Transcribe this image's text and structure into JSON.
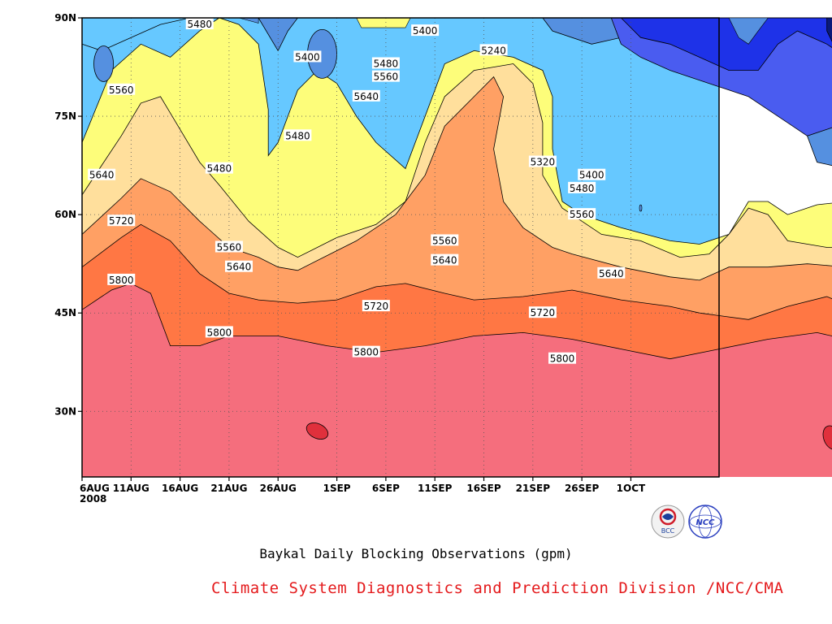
{
  "title": "Baykal Daily Blocking Observations (gpm)",
  "credit": "Climate System Diagnostics and Prediction Division /NCC/CMA",
  "logos": [
    {
      "name": "bcc-logo",
      "text": "BCC"
    },
    {
      "name": "ncc-logo",
      "text": "NCC"
    }
  ],
  "chart_data": {
    "type": "heatmap",
    "title": "Baykal Daily Blocking Observations (gpm)",
    "xlabel": "",
    "ylabel": "",
    "x_ticks": [
      "6AUG",
      "11AUG",
      "16AUG",
      "21AUG",
      "26AUG",
      "1SEP",
      "6SEP",
      "11SEP",
      "16SEP",
      "21SEP",
      "26SEP",
      "1OCT"
    ],
    "x_year": "2008",
    "y_ticks": [
      "30N",
      "45N",
      "60N",
      "75N",
      "90N"
    ],
    "y_values": [
      30,
      45,
      60,
      75,
      90
    ],
    "ylim": [
      20,
      90
    ],
    "grid": true,
    "contour_levels": [
      5240,
      5320,
      5400,
      5480,
      5560,
      5640,
      5720,
      5800,
      5880
    ],
    "level_colors": {
      "below_5240": "#0a1a7a",
      "5240": "#1e32e8",
      "5320": "#4a5cf0",
      "5400": "#5590e0",
      "5480": "#66c8ff",
      "5560": "#fdfd7a",
      "5640": "#ffdf9c",
      "5720": "#ffa064",
      "5800": "#ff7744",
      "above_5800": "#f56e7d",
      "above_5880": "#e0303c"
    },
    "contour_labels": [
      {
        "value": "5480",
        "date": "18AUG",
        "lat": 89
      },
      {
        "value": "5400",
        "date": "29AUG",
        "lat": 84
      },
      {
        "value": "5400",
        "date": "10SEP",
        "lat": 88
      },
      {
        "value": "5240",
        "date": "17SEP",
        "lat": 85
      },
      {
        "value": "5480",
        "date": "6SEP",
        "lat": 83
      },
      {
        "value": "5560",
        "date": "6SEP",
        "lat": 81
      },
      {
        "value": "5640",
        "date": "4SEP",
        "lat": 78
      },
      {
        "value": "5560",
        "date": "10AUG",
        "lat": 79
      },
      {
        "value": "5480",
        "date": "28AUG",
        "lat": 72
      },
      {
        "value": "5480",
        "date": "20AUG",
        "lat": 67
      },
      {
        "value": "5320",
        "date": "22SEP",
        "lat": 68
      },
      {
        "value": "5400",
        "date": "27SEP",
        "lat": 66
      },
      {
        "value": "5480",
        "date": "26SEP",
        "lat": 64
      },
      {
        "value": "5640",
        "date": "8AUG",
        "lat": 66
      },
      {
        "value": "5560",
        "date": "26SEP",
        "lat": 60
      },
      {
        "value": "5720",
        "date": "10AUG",
        "lat": 59
      },
      {
        "value": "5560",
        "date": "21AUG",
        "lat": 55
      },
      {
        "value": "5560",
        "date": "12SEP",
        "lat": 56
      },
      {
        "value": "5640",
        "date": "12SEP",
        "lat": 53
      },
      {
        "value": "5640",
        "date": "22AUG",
        "lat": 52
      },
      {
        "value": "5640",
        "date": "29SEP",
        "lat": 51
      },
      {
        "value": "5800",
        "date": "10AUG",
        "lat": 50
      },
      {
        "value": "5720",
        "date": "5SEP",
        "lat": 46
      },
      {
        "value": "5720",
        "date": "22SEP",
        "lat": 45
      },
      {
        "value": "5800",
        "date": "20AUG",
        "lat": 42
      },
      {
        "value": "5800",
        "date": "4SEP",
        "lat": 39
      },
      {
        "value": "5800",
        "date": "24SEP",
        "lat": 38
      }
    ],
    "bands": [
      {
        "level": "above_5800",
        "boundary": [
          [
            0,
            45.5
          ],
          [
            3,
            48.5
          ],
          [
            5,
            49.5
          ],
          [
            7,
            48
          ],
          [
            8,
            44
          ],
          [
            9,
            40
          ],
          [
            12,
            40
          ],
          [
            15,
            41.5
          ],
          [
            20,
            41.5
          ],
          [
            25,
            40
          ],
          [
            30,
            39
          ],
          [
            35,
            40
          ],
          [
            40,
            41.5
          ],
          [
            45,
            42
          ],
          [
            50,
            41
          ],
          [
            55,
            39.5
          ],
          [
            60,
            38
          ],
          [
            65,
            39.5
          ],
          [
            70,
            41
          ],
          [
            75,
            42
          ],
          [
            78,
            41
          ],
          [
            80,
            39
          ]
        ]
      },
      {
        "level": "5800",
        "boundary": [
          [
            0,
            52
          ],
          [
            4,
            56.5
          ],
          [
            6,
            58.5
          ],
          [
            9,
            56
          ],
          [
            12,
            51
          ],
          [
            15,
            48
          ],
          [
            18,
            47
          ],
          [
            22,
            46.5
          ],
          [
            26,
            47
          ],
          [
            30,
            49
          ],
          [
            33,
            49.5
          ],
          [
            37,
            48
          ],
          [
            40,
            47
          ],
          [
            45,
            47.5
          ],
          [
            50,
            48.5
          ],
          [
            55,
            47
          ],
          [
            60,
            46
          ],
          [
            63,
            45
          ],
          [
            68,
            44
          ],
          [
            72,
            46
          ],
          [
            76,
            47.5
          ],
          [
            80,
            45
          ]
        ]
      },
      {
        "level": "5720",
        "boundary": [
          [
            0,
            57
          ],
          [
            4,
            62.5
          ],
          [
            6,
            65.5
          ],
          [
            9,
            63.5
          ],
          [
            12,
            59
          ],
          [
            15,
            55
          ],
          [
            18,
            53.5
          ],
          [
            20,
            52
          ],
          [
            22,
            51.5
          ],
          [
            26,
            54.5
          ],
          [
            28,
            56
          ],
          [
            32,
            60
          ],
          [
            35,
            66
          ],
          [
            37,
            73.5
          ],
          [
            40,
            78
          ],
          [
            42,
            81
          ],
          [
            43,
            78
          ],
          [
            42,
            70
          ],
          [
            43,
            62
          ],
          [
            45,
            58
          ],
          [
            48,
            55
          ],
          [
            50,
            54
          ],
          [
            55,
            52
          ],
          [
            60,
            50.5
          ],
          [
            63,
            50
          ],
          [
            66,
            52
          ],
          [
            70,
            52
          ],
          [
            74,
            52.5
          ],
          [
            78,
            52
          ],
          [
            80,
            52
          ]
        ]
      },
      {
        "level": "5640",
        "boundary": [
          [
            0,
            63
          ],
          [
            4,
            72
          ],
          [
            6,
            77
          ],
          [
            8,
            78
          ],
          [
            10,
            73
          ],
          [
            12,
            68
          ],
          [
            14,
            64.5
          ],
          [
            17,
            59
          ],
          [
            20,
            55
          ],
          [
            22,
            53.5
          ],
          [
            26,
            56.5
          ],
          [
            30,
            58.5
          ],
          [
            33,
            62
          ],
          [
            35,
            71
          ],
          [
            37,
            78
          ],
          [
            40,
            82
          ],
          [
            44,
            83
          ],
          [
            46,
            80
          ],
          [
            47,
            74
          ],
          [
            47,
            66
          ],
          [
            49,
            61
          ],
          [
            53,
            57
          ],
          [
            57,
            56
          ],
          [
            61,
            53.5
          ],
          [
            64,
            54
          ],
          [
            66,
            57
          ],
          [
            68,
            61
          ],
          [
            70,
            60
          ],
          [
            72,
            56
          ],
          [
            76,
            55
          ],
          [
            80,
            55
          ]
        ]
      },
      {
        "level": "5560",
        "boundary": [
          [
            0,
            71
          ],
          [
            3,
            82
          ],
          [
            6,
            86
          ],
          [
            9,
            84
          ],
          [
            12,
            88
          ],
          [
            14,
            90
          ],
          [
            16,
            89
          ],
          [
            18,
            86
          ],
          [
            19,
            76
          ],
          [
            19,
            69
          ],
          [
            20,
            71
          ],
          [
            22,
            79
          ],
          [
            24,
            82
          ],
          [
            26,
            80
          ],
          [
            28,
            75
          ],
          [
            30,
            71
          ],
          [
            33,
            67
          ],
          [
            35,
            75
          ],
          [
            37,
            83
          ],
          [
            40,
            85
          ],
          [
            44,
            84
          ],
          [
            47,
            82
          ],
          [
            48,
            78
          ],
          [
            48,
            70
          ],
          [
            49,
            62
          ],
          [
            51,
            60
          ],
          [
            55,
            58
          ],
          [
            60,
            56
          ],
          [
            63,
            55.5
          ],
          [
            66,
            57
          ],
          [
            68,
            62
          ],
          [
            70,
            62
          ],
          [
            72,
            60
          ],
          [
            75,
            61.5
          ],
          [
            78,
            62
          ],
          [
            80,
            62
          ]
        ]
      },
      {
        "level": "5480",
        "boundary": [
          [
            0,
            86
          ],
          [
            2,
            85
          ],
          [
            5,
            87
          ],
          [
            8,
            89
          ],
          [
            11,
            90
          ],
          [
            80,
            90
          ]
        ]
      },
      {
        "level": "5400",
        "boundary": [
          [
            18,
            90
          ],
          [
            20,
            85
          ],
          [
            21,
            88
          ],
          [
            22,
            90
          ],
          [
            47,
            90
          ],
          [
            48,
            88
          ],
          [
            52,
            86
          ],
          [
            55,
            87
          ],
          [
            59,
            89
          ],
          [
            65,
            89
          ],
          [
            70,
            86
          ],
          [
            73,
            76
          ],
          [
            75,
            68
          ],
          [
            78,
            67
          ],
          [
            80,
            66
          ],
          [
            80,
            90
          ]
        ]
      },
      {
        "level": "5320",
        "boundary": [
          [
            54,
            90
          ],
          [
            55,
            86
          ],
          [
            57,
            84
          ],
          [
            60,
            82
          ],
          [
            64,
            80
          ],
          [
            68,
            78
          ],
          [
            72,
            74
          ],
          [
            74,
            72
          ],
          [
            76,
            73
          ],
          [
            78,
            74
          ],
          [
            80,
            74
          ],
          [
            80,
            90
          ]
        ]
      },
      {
        "level": "5240",
        "boundary": [
          [
            55,
            90
          ],
          [
            57,
            87
          ],
          [
            60,
            86
          ],
          [
            63,
            84
          ],
          [
            66,
            82
          ],
          [
            69,
            82
          ],
          [
            71,
            86
          ],
          [
            73,
            88
          ],
          [
            76,
            86
          ],
          [
            78,
            84
          ],
          [
            80,
            83
          ],
          [
            80,
            90
          ]
        ]
      }
    ]
  }
}
